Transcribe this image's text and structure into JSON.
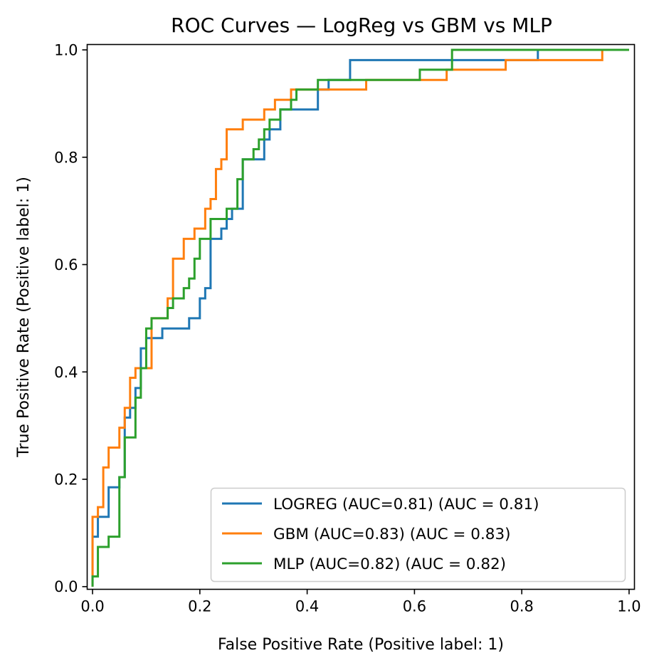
{
  "chart_data": {
    "type": "line",
    "title": "ROC Curves — LogReg vs GBM vs MLP",
    "xlabel": "False Positive Rate (Positive label: 1)",
    "ylabel": "True Positive Rate (Positive label: 1)",
    "xlim": [
      -0.01,
      1.01
    ],
    "ylim": [
      -0.005,
      1.01
    ],
    "xticks": [
      "0.0",
      "0.2",
      "0.4",
      "0.6",
      "0.8",
      "1.0"
    ],
    "yticks": [
      "0.0",
      "0.2",
      "0.4",
      "0.6",
      "0.8",
      "1.0"
    ],
    "grid": false,
    "legend_position": "lower-right",
    "colors": {
      "LOGREG": "#1f77b4",
      "GBM": "#ff7f0e",
      "MLP": "#2ca02c"
    },
    "series": [
      {
        "name": "LOGREG (AUC=0.81) (AUC = 0.81)",
        "color": "#1f77b4",
        "points": [
          [
            0,
            0
          ],
          [
            0,
            0.093
          ],
          [
            0.01,
            0.093
          ],
          [
            0.01,
            0.13
          ],
          [
            0.03,
            0.13
          ],
          [
            0.03,
            0.185
          ],
          [
            0.05,
            0.185
          ],
          [
            0.05,
            0.204
          ],
          [
            0.06,
            0.204
          ],
          [
            0.06,
            0.315
          ],
          [
            0.07,
            0.315
          ],
          [
            0.07,
            0.333
          ],
          [
            0.08,
            0.333
          ],
          [
            0.08,
            0.37
          ],
          [
            0.09,
            0.37
          ],
          [
            0.09,
            0.444
          ],
          [
            0.1,
            0.444
          ],
          [
            0.1,
            0.463
          ],
          [
            0.13,
            0.463
          ],
          [
            0.13,
            0.481
          ],
          [
            0.18,
            0.481
          ],
          [
            0.18,
            0.5
          ],
          [
            0.2,
            0.5
          ],
          [
            0.2,
            0.537
          ],
          [
            0.21,
            0.537
          ],
          [
            0.21,
            0.556
          ],
          [
            0.22,
            0.556
          ],
          [
            0.22,
            0.648
          ],
          [
            0.24,
            0.648
          ],
          [
            0.24,
            0.667
          ],
          [
            0.25,
            0.667
          ],
          [
            0.25,
            0.685
          ],
          [
            0.26,
            0.685
          ],
          [
            0.26,
            0.704
          ],
          [
            0.28,
            0.704
          ],
          [
            0.28,
            0.796
          ],
          [
            0.32,
            0.796
          ],
          [
            0.32,
            0.833
          ],
          [
            0.33,
            0.833
          ],
          [
            0.33,
            0.852
          ],
          [
            0.35,
            0.852
          ],
          [
            0.35,
            0.889
          ],
          [
            0.42,
            0.889
          ],
          [
            0.42,
            0.926
          ],
          [
            0.44,
            0.926
          ],
          [
            0.44,
            0.944
          ],
          [
            0.48,
            0.944
          ],
          [
            0.48,
            0.981
          ],
          [
            0.83,
            0.981
          ],
          [
            0.83,
            1.0
          ],
          [
            1.0,
            1.0
          ]
        ]
      },
      {
        "name": "GBM (AUC=0.83) (AUC = 0.83)",
        "color": "#ff7f0e",
        "points": [
          [
            0,
            0
          ],
          [
            0,
            0.13
          ],
          [
            0.01,
            0.13
          ],
          [
            0.01,
            0.148
          ],
          [
            0.02,
            0.148
          ],
          [
            0.02,
            0.222
          ],
          [
            0.03,
            0.222
          ],
          [
            0.03,
            0.259
          ],
          [
            0.05,
            0.259
          ],
          [
            0.05,
            0.296
          ],
          [
            0.06,
            0.296
          ],
          [
            0.06,
            0.333
          ],
          [
            0.07,
            0.333
          ],
          [
            0.07,
            0.389
          ],
          [
            0.08,
            0.389
          ],
          [
            0.08,
            0.407
          ],
          [
            0.1,
            0.407
          ],
          [
            0.1,
            0.407
          ],
          [
            0.11,
            0.407
          ],
          [
            0.11,
            0.5
          ],
          [
            0.14,
            0.5
          ],
          [
            0.14,
            0.537
          ],
          [
            0.15,
            0.537
          ],
          [
            0.15,
            0.611
          ],
          [
            0.17,
            0.611
          ],
          [
            0.17,
            0.648
          ],
          [
            0.19,
            0.648
          ],
          [
            0.19,
            0.667
          ],
          [
            0.21,
            0.667
          ],
          [
            0.21,
            0.704
          ],
          [
            0.22,
            0.704
          ],
          [
            0.22,
            0.722
          ],
          [
            0.23,
            0.722
          ],
          [
            0.23,
            0.778
          ],
          [
            0.24,
            0.778
          ],
          [
            0.24,
            0.796
          ],
          [
            0.25,
            0.796
          ],
          [
            0.25,
            0.852
          ],
          [
            0.28,
            0.852
          ],
          [
            0.28,
            0.87
          ],
          [
            0.32,
            0.87
          ],
          [
            0.32,
            0.889
          ],
          [
            0.34,
            0.889
          ],
          [
            0.34,
            0.907
          ],
          [
            0.37,
            0.907
          ],
          [
            0.37,
            0.926
          ],
          [
            0.48,
            0.926
          ],
          [
            0.48,
            0.926
          ],
          [
            0.51,
            0.926
          ],
          [
            0.51,
            0.944
          ],
          [
            0.66,
            0.944
          ],
          [
            0.66,
            0.963
          ],
          [
            0.77,
            0.963
          ],
          [
            0.77,
            0.981
          ],
          [
            0.95,
            0.981
          ],
          [
            0.95,
            1.0
          ],
          [
            1.0,
            1.0
          ]
        ]
      },
      {
        "name": "MLP (AUC=0.82) (AUC = 0.82)",
        "color": "#2ca02c",
        "points": [
          [
            0,
            0
          ],
          [
            0,
            0.019
          ],
          [
            0.01,
            0.019
          ],
          [
            0.01,
            0.074
          ],
          [
            0.03,
            0.074
          ],
          [
            0.03,
            0.093
          ],
          [
            0.05,
            0.093
          ],
          [
            0.05,
            0.204
          ],
          [
            0.06,
            0.204
          ],
          [
            0.06,
            0.278
          ],
          [
            0.08,
            0.278
          ],
          [
            0.08,
            0.352
          ],
          [
            0.09,
            0.352
          ],
          [
            0.09,
            0.407
          ],
          [
            0.1,
            0.407
          ],
          [
            0.1,
            0.481
          ],
          [
            0.11,
            0.481
          ],
          [
            0.11,
            0.5
          ],
          [
            0.14,
            0.5
          ],
          [
            0.14,
            0.519
          ],
          [
            0.15,
            0.519
          ],
          [
            0.15,
            0.537
          ],
          [
            0.17,
            0.537
          ],
          [
            0.17,
            0.556
          ],
          [
            0.18,
            0.556
          ],
          [
            0.18,
            0.574
          ],
          [
            0.19,
            0.574
          ],
          [
            0.19,
            0.611
          ],
          [
            0.2,
            0.611
          ],
          [
            0.2,
            0.648
          ],
          [
            0.22,
            0.648
          ],
          [
            0.22,
            0.685
          ],
          [
            0.25,
            0.685
          ],
          [
            0.25,
            0.704
          ],
          [
            0.27,
            0.704
          ],
          [
            0.27,
            0.759
          ],
          [
            0.28,
            0.759
          ],
          [
            0.28,
            0.796
          ],
          [
            0.3,
            0.796
          ],
          [
            0.3,
            0.815
          ],
          [
            0.31,
            0.815
          ],
          [
            0.31,
            0.833
          ],
          [
            0.32,
            0.833
          ],
          [
            0.32,
            0.852
          ],
          [
            0.33,
            0.852
          ],
          [
            0.33,
            0.87
          ],
          [
            0.35,
            0.87
          ],
          [
            0.35,
            0.889
          ],
          [
            0.37,
            0.889
          ],
          [
            0.37,
            0.907
          ],
          [
            0.38,
            0.907
          ],
          [
            0.38,
            0.926
          ],
          [
            0.42,
            0.926
          ],
          [
            0.42,
            0.944
          ],
          [
            0.48,
            0.944
          ],
          [
            0.48,
            0.944
          ],
          [
            0.61,
            0.944
          ],
          [
            0.61,
            0.963
          ],
          [
            0.67,
            0.963
          ],
          [
            0.67,
            1.0
          ],
          [
            1.0,
            1.0
          ]
        ]
      }
    ]
  }
}
